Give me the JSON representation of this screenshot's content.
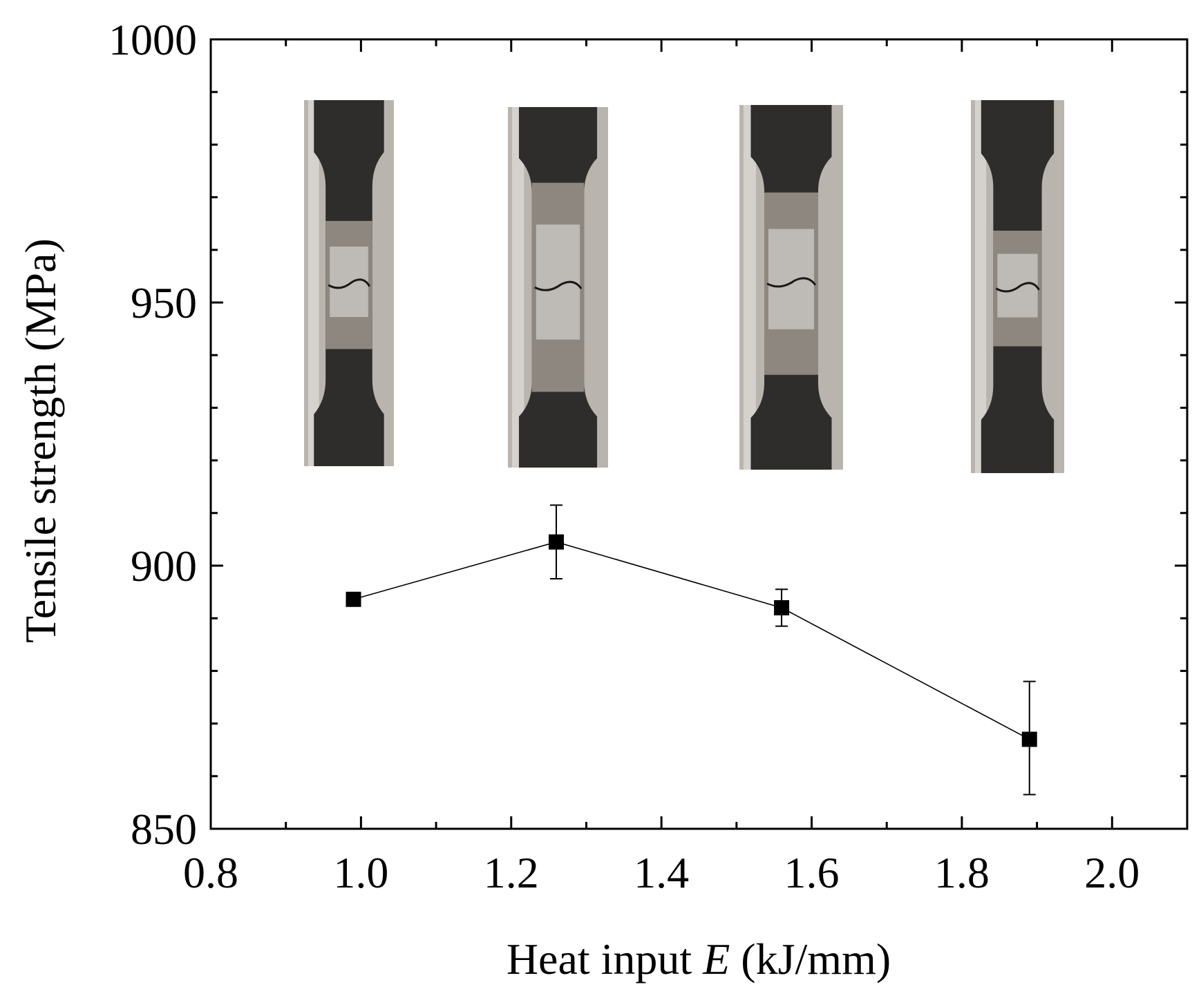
{
  "chart_data": {
    "type": "line",
    "xlabel": {
      "prefix": "Heat input ",
      "variable": "E",
      "suffix": " (kJ/mm)"
    },
    "ylabel": "Tensile strength (MPa)",
    "xlim": [
      0.8,
      2.1
    ],
    "ylim": [
      850,
      1000
    ],
    "x_ticks": [
      0.8,
      1.0,
      1.2,
      1.4,
      1.6,
      1.8,
      2.0
    ],
    "x_tick_labels": [
      "0.8",
      "1.0",
      "1.2",
      "1.4",
      "1.6",
      "1.8",
      "2.0"
    ],
    "x_minor_ticks": [
      0.9,
      1.1,
      1.3,
      1.5,
      1.7,
      1.9
    ],
    "y_ticks": [
      850,
      900,
      950,
      1000
    ],
    "y_tick_labels": [
      "850",
      "900",
      "950",
      "1000"
    ],
    "y_minor_ticks": [
      860,
      870,
      880,
      890,
      910,
      920,
      930,
      940,
      960,
      970,
      980,
      990
    ],
    "grid": false,
    "legend": "none",
    "series": [
      {
        "marker": "square",
        "color": "#000000",
        "points": [
          {
            "x": 0.99,
            "y": 893.6,
            "err_low": 0,
            "err_high": 0
          },
          {
            "x": 1.26,
            "y": 904.5,
            "err_low": 7.0,
            "err_high": 7.0
          },
          {
            "x": 1.56,
            "y": 892.0,
            "err_low": 3.5,
            "err_high": 3.5
          },
          {
            "x": 1.89,
            "y": 867.0,
            "err_low": 10.5,
            "err_high": 11.0
          }
        ]
      }
    ],
    "inset_photos": [
      {
        "name": "specimen-photo-1"
      },
      {
        "name": "specimen-photo-2"
      },
      {
        "name": "specimen-photo-3"
      },
      {
        "name": "specimen-photo-4"
      }
    ]
  }
}
